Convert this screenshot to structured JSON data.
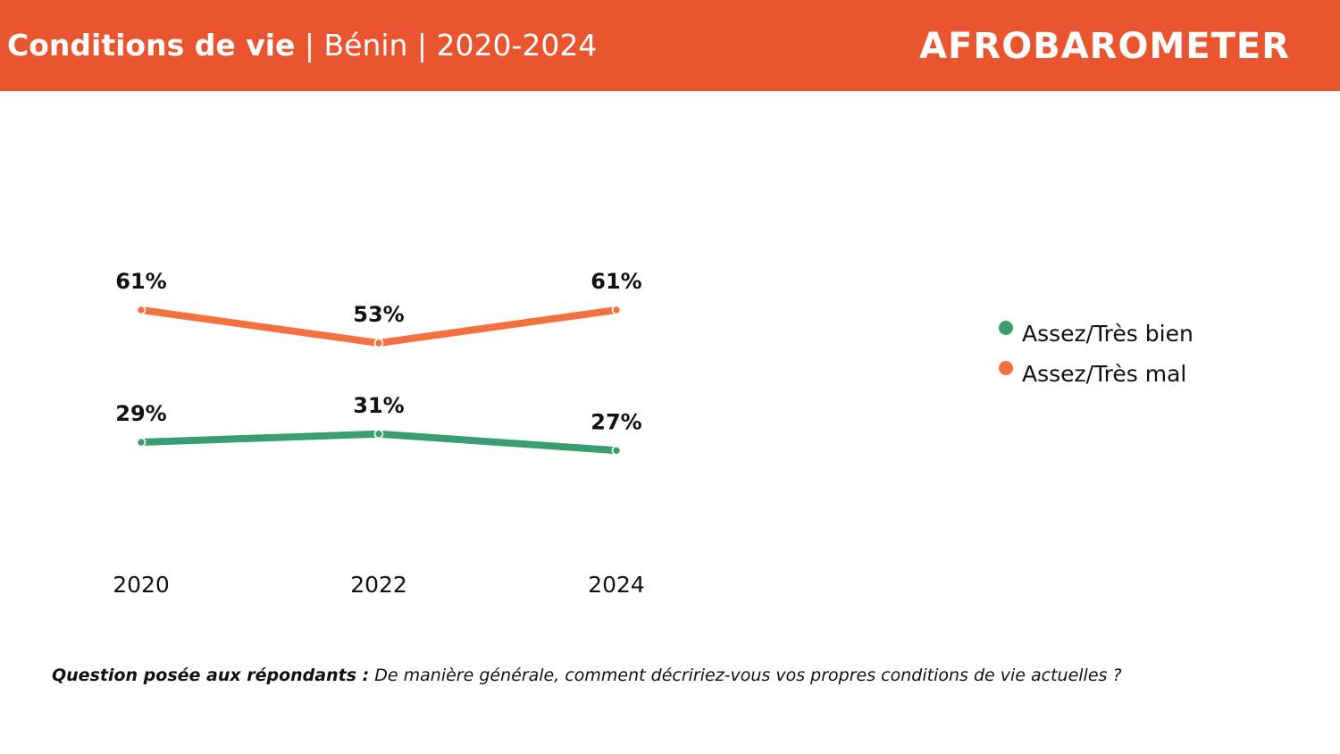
{
  "header": {
    "title_main": "Conditions de vie",
    "title_rest": " | Bénin | 2020-2024",
    "logo_text": "AFROBAROMETER",
    "background_color": "#e9552e"
  },
  "chart_data": {
    "type": "line",
    "x": [
      "2020",
      "2022",
      "2024"
    ],
    "series": [
      {
        "name": "Assez/Très bien",
        "values": [
          29,
          31,
          27
        ],
        "labels": [
          "29%",
          "31%",
          "27%"
        ],
        "color": "#3a9e72"
      },
      {
        "name": "Assez/Très mal",
        "values": [
          61,
          53,
          61
        ],
        "labels": [
          "61%",
          "53%",
          "61%"
        ],
        "color": "#f47040"
      }
    ],
    "ylim": [
      0,
      100
    ],
    "unit": "%",
    "grid": false,
    "legend_position": "right"
  },
  "question": {
    "label": "Question posée aux répondants :",
    "text": " De manière générale, comment décririez-vous vos propres conditions de vie actuelles ?"
  }
}
